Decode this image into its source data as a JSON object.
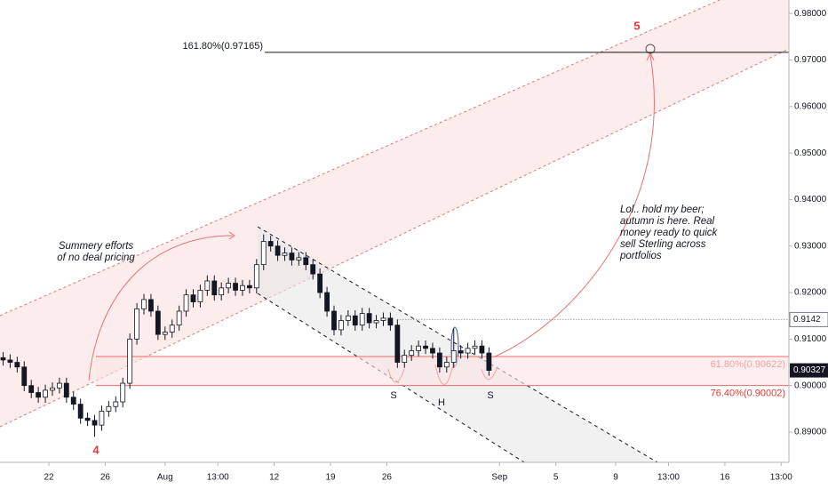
{
  "chart_data": {
    "type": "candlestick",
    "xlim": [
      -3.47,
      52.55
    ],
    "ylim": [
      0.8835,
      0.9829
    ],
    "xticks": [
      {
        "value": 0,
        "label": "22"
      },
      {
        "value": 4,
        "label": "26"
      },
      {
        "value": 8.25,
        "label": "Aug"
      },
      {
        "value": 12,
        "label": "13:00"
      },
      {
        "value": 16,
        "label": "12"
      },
      {
        "value": 20,
        "label": "19"
      },
      {
        "value": 24,
        "label": "26"
      },
      {
        "value": 32,
        "label": "Sep"
      },
      {
        "value": 36,
        "label": "5"
      },
      {
        "value": 40.25,
        "label": "9"
      },
      {
        "value": 44,
        "label": "13:00"
      },
      {
        "value": 48,
        "label": "16"
      },
      {
        "value": 52,
        "label": "13:00"
      }
    ],
    "yticks": [
      {
        "value": 0.98,
        "label": "0.98000"
      },
      {
        "value": 0.97,
        "label": "0.97000"
      },
      {
        "value": 0.96,
        "label": "0.96000"
      },
      {
        "value": 0.95,
        "label": "0.95000"
      },
      {
        "value": 0.94,
        "label": "0.94000"
      },
      {
        "value": 0.93,
        "label": "0.93000"
      },
      {
        "value": 0.92,
        "label": "0.92000"
      },
      {
        "value": 0.91,
        "label": "0.91000"
      },
      {
        "value": 0.9,
        "label": "0.90000"
      },
      {
        "value": 0.89,
        "label": "0.89000"
      }
    ],
    "x": [
      -3.25,
      -2.75,
      -2.25,
      -1.75,
      -1.25,
      -0.75,
      -0.25,
      0.25,
      0.75,
      1.25,
      1.75,
      2.25,
      2.75,
      3.25,
      3.75,
      4.25,
      4.75,
      5.25,
      5.75,
      6.25,
      6.75,
      7.25,
      7.75,
      8.25,
      8.75,
      9.25,
      9.75,
      10.25,
      10.75,
      11.25,
      11.75,
      12.25,
      12.75,
      13.25,
      13.75,
      14.25,
      14.75,
      15.25,
      15.75,
      16.25,
      16.75,
      17.25,
      17.75,
      18.25,
      18.75,
      19.25,
      19.75,
      20.25,
      20.75,
      21.25,
      21.75,
      22.25,
      22.75,
      23.25,
      23.75,
      24.25,
      24.75,
      25.25,
      25.75,
      26.25,
      26.75,
      27.25,
      27.75,
      28.25,
      28.75,
      29.25,
      29.75,
      30.25,
      30.75,
      31.25
    ],
    "open": [
      0.906,
      0.9055,
      0.905,
      0.904,
      0.9,
      0.8985,
      0.8975,
      0.899,
      0.8995,
      0.9005,
      0.8975,
      0.896,
      0.893,
      0.8925,
      0.8915,
      0.8945,
      0.8955,
      0.8965,
      0.9005,
      0.91,
      0.9165,
      0.9185,
      0.916,
      0.911,
      0.9115,
      0.913,
      0.916,
      0.9195,
      0.918,
      0.9205,
      0.9225,
      0.9195,
      0.921,
      0.922,
      0.9205,
      0.9215,
      0.921,
      0.926,
      0.931,
      0.93,
      0.928,
      0.9285,
      0.927,
      0.9275,
      0.926,
      0.924,
      0.92,
      0.916,
      0.912,
      0.914,
      0.915,
      0.913,
      0.9155,
      0.9135,
      0.914,
      0.9145,
      0.913,
      0.905,
      0.9065,
      0.9075,
      0.9085,
      0.908,
      0.907,
      0.904,
      0.905,
      0.9075,
      0.907,
      0.908,
      0.9085,
      0.907
    ],
    "high": [
      0.9072,
      0.9067,
      0.9062,
      0.9052,
      0.9012,
      0.8997,
      0.9002,
      0.9007,
      0.9017,
      0.9017,
      0.8987,
      0.8972,
      0.8942,
      0.8937,
      0.8957,
      0.8967,
      0.8977,
      0.9017,
      0.9112,
      0.9177,
      0.9197,
      0.9197,
      0.9172,
      0.9127,
      0.9142,
      0.9172,
      0.9207,
      0.9207,
      0.9217,
      0.9237,
      0.9237,
      0.9222,
      0.9232,
      0.9232,
      0.9227,
      0.9227,
      0.9272,
      0.9325,
      0.9322,
      0.9312,
      0.9297,
      0.9297,
      0.9287,
      0.9287,
      0.9272,
      0.9252,
      0.9212,
      0.9172,
      0.9152,
      0.9162,
      0.9162,
      0.9167,
      0.9167,
      0.9152,
      0.9157,
      0.9157,
      0.9142,
      0.9077,
      0.9087,
      0.9097,
      0.9097,
      0.9092,
      0.9082,
      0.9062,
      0.91238,
      0.9087,
      0.9092,
      0.9097,
      0.9097,
      0.9082
    ],
    "low": [
      0.9043,
      0.9038,
      0.9028,
      0.8988,
      0.8973,
      0.8963,
      0.8963,
      0.8978,
      0.8983,
      0.8963,
      0.8948,
      0.8918,
      0.8913,
      0.889,
      0.8903,
      0.8933,
      0.8943,
      0.8953,
      0.8993,
      0.9088,
      0.9153,
      0.9148,
      0.9098,
      0.9098,
      0.9103,
      0.9118,
      0.9148,
      0.9168,
      0.9168,
      0.9193,
      0.9183,
      0.9183,
      0.9198,
      0.9193,
      0.9193,
      0.9198,
      0.9198,
      0.9248,
      0.9288,
      0.9268,
      0.9268,
      0.9258,
      0.9258,
      0.9248,
      0.9228,
      0.9188,
      0.9148,
      0.9108,
      0.9108,
      0.9128,
      0.9118,
      0.9118,
      0.9123,
      0.9123,
      0.9128,
      0.9118,
      0.9038,
      0.9038,
      0.9053,
      0.9063,
      0.9068,
      0.9058,
      0.9028,
      0.9028,
      0.9038,
      0.9058,
      0.9058,
      0.9068,
      0.9058,
      0.9021
    ],
    "close": [
      0.9055,
      0.905,
      0.904,
      0.9,
      0.8985,
      0.8975,
      0.899,
      0.8995,
      0.9005,
      0.8975,
      0.896,
      0.893,
      0.8925,
      0.8915,
      0.8945,
      0.8955,
      0.8965,
      0.9005,
      0.91,
      0.9165,
      0.9185,
      0.916,
      0.911,
      0.9115,
      0.913,
      0.916,
      0.9195,
      0.918,
      0.9205,
      0.9225,
      0.9195,
      0.921,
      0.922,
      0.9205,
      0.9215,
      0.921,
      0.926,
      0.931,
      0.93,
      0.928,
      0.9285,
      0.927,
      0.9275,
      0.926,
      0.924,
      0.92,
      0.916,
      0.912,
      0.914,
      0.915,
      0.913,
      0.9155,
      0.9135,
      0.914,
      0.9145,
      0.913,
      0.905,
      0.9065,
      0.9075,
      0.9085,
      0.908,
      0.907,
      0.904,
      0.905,
      0.9075,
      0.907,
      0.908,
      0.9085,
      0.907,
      0.90327
    ],
    "levels": [
      {
        "label": "161.80%(0.97165)",
        "value": 0.97165,
        "color": "#131722"
      },
      {
        "label": "61.80%(0.90622)",
        "value": 0.90622,
        "color": "#e53935"
      },
      {
        "label": "76.40%(0.90002)",
        "value": 0.90002,
        "color": "#e53935"
      }
    ],
    "annotations": {
      "wave5": "5",
      "wave4": "4",
      "left_shoulder": "S",
      "head": "H",
      "right_shoulder": "S",
      "note1": [
        "Summery efforts",
        "of no deal pricing"
      ],
      "note2": [
        "Lol.. hold my beer;",
        "autumn is here. Real",
        "money ready to quick",
        "sell Sterling across",
        "portfolios"
      ]
    }
  }
}
